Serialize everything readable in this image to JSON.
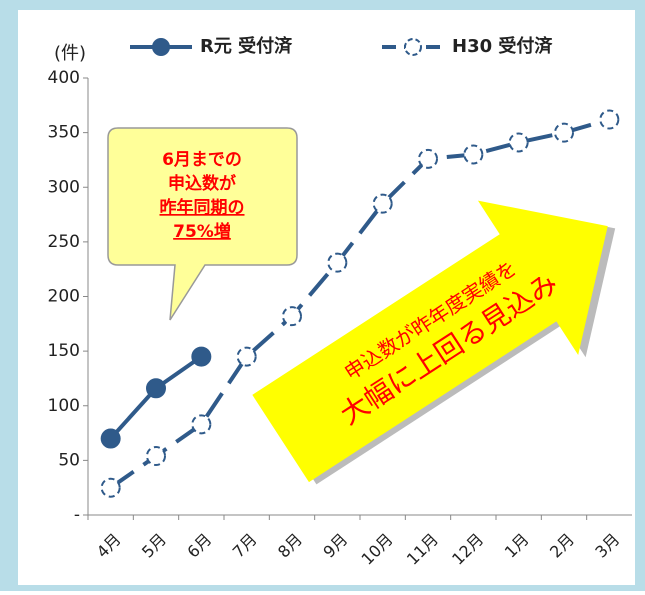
{
  "chart_data": {
    "type": "line",
    "y_unit_label": "(件)",
    "categories": [
      "4月",
      "5月",
      "6月",
      "7月",
      "8月",
      "9月",
      "10月",
      "11月",
      "12月",
      "1月",
      "2月",
      "3月"
    ],
    "series": [
      {
        "name": "R元 受付済",
        "color": "#2f5a8a",
        "values": [
          70,
          116,
          145,
          null,
          null,
          null,
          null,
          null,
          null,
          null,
          null,
          null
        ]
      },
      {
        "name": "H30 受付済",
        "color": "#2f5a8a",
        "dashed": true,
        "values": [
          25,
          54,
          83,
          145,
          182,
          231,
          285,
          326,
          330,
          341,
          350,
          362
        ]
      }
    ],
    "ylim": [
      0,
      400
    ],
    "yticks": [
      {
        "value": 0,
        "label": "-"
      },
      50,
      100,
      150,
      200,
      250,
      300,
      350,
      400
    ],
    "callout": [
      "6月までの",
      "申込数が",
      "昨年同期の",
      "75%増"
    ],
    "arrow_text": [
      "申込数が昨年度実績を",
      "大幅に上回る見込み"
    ],
    "legend": "top"
  }
}
